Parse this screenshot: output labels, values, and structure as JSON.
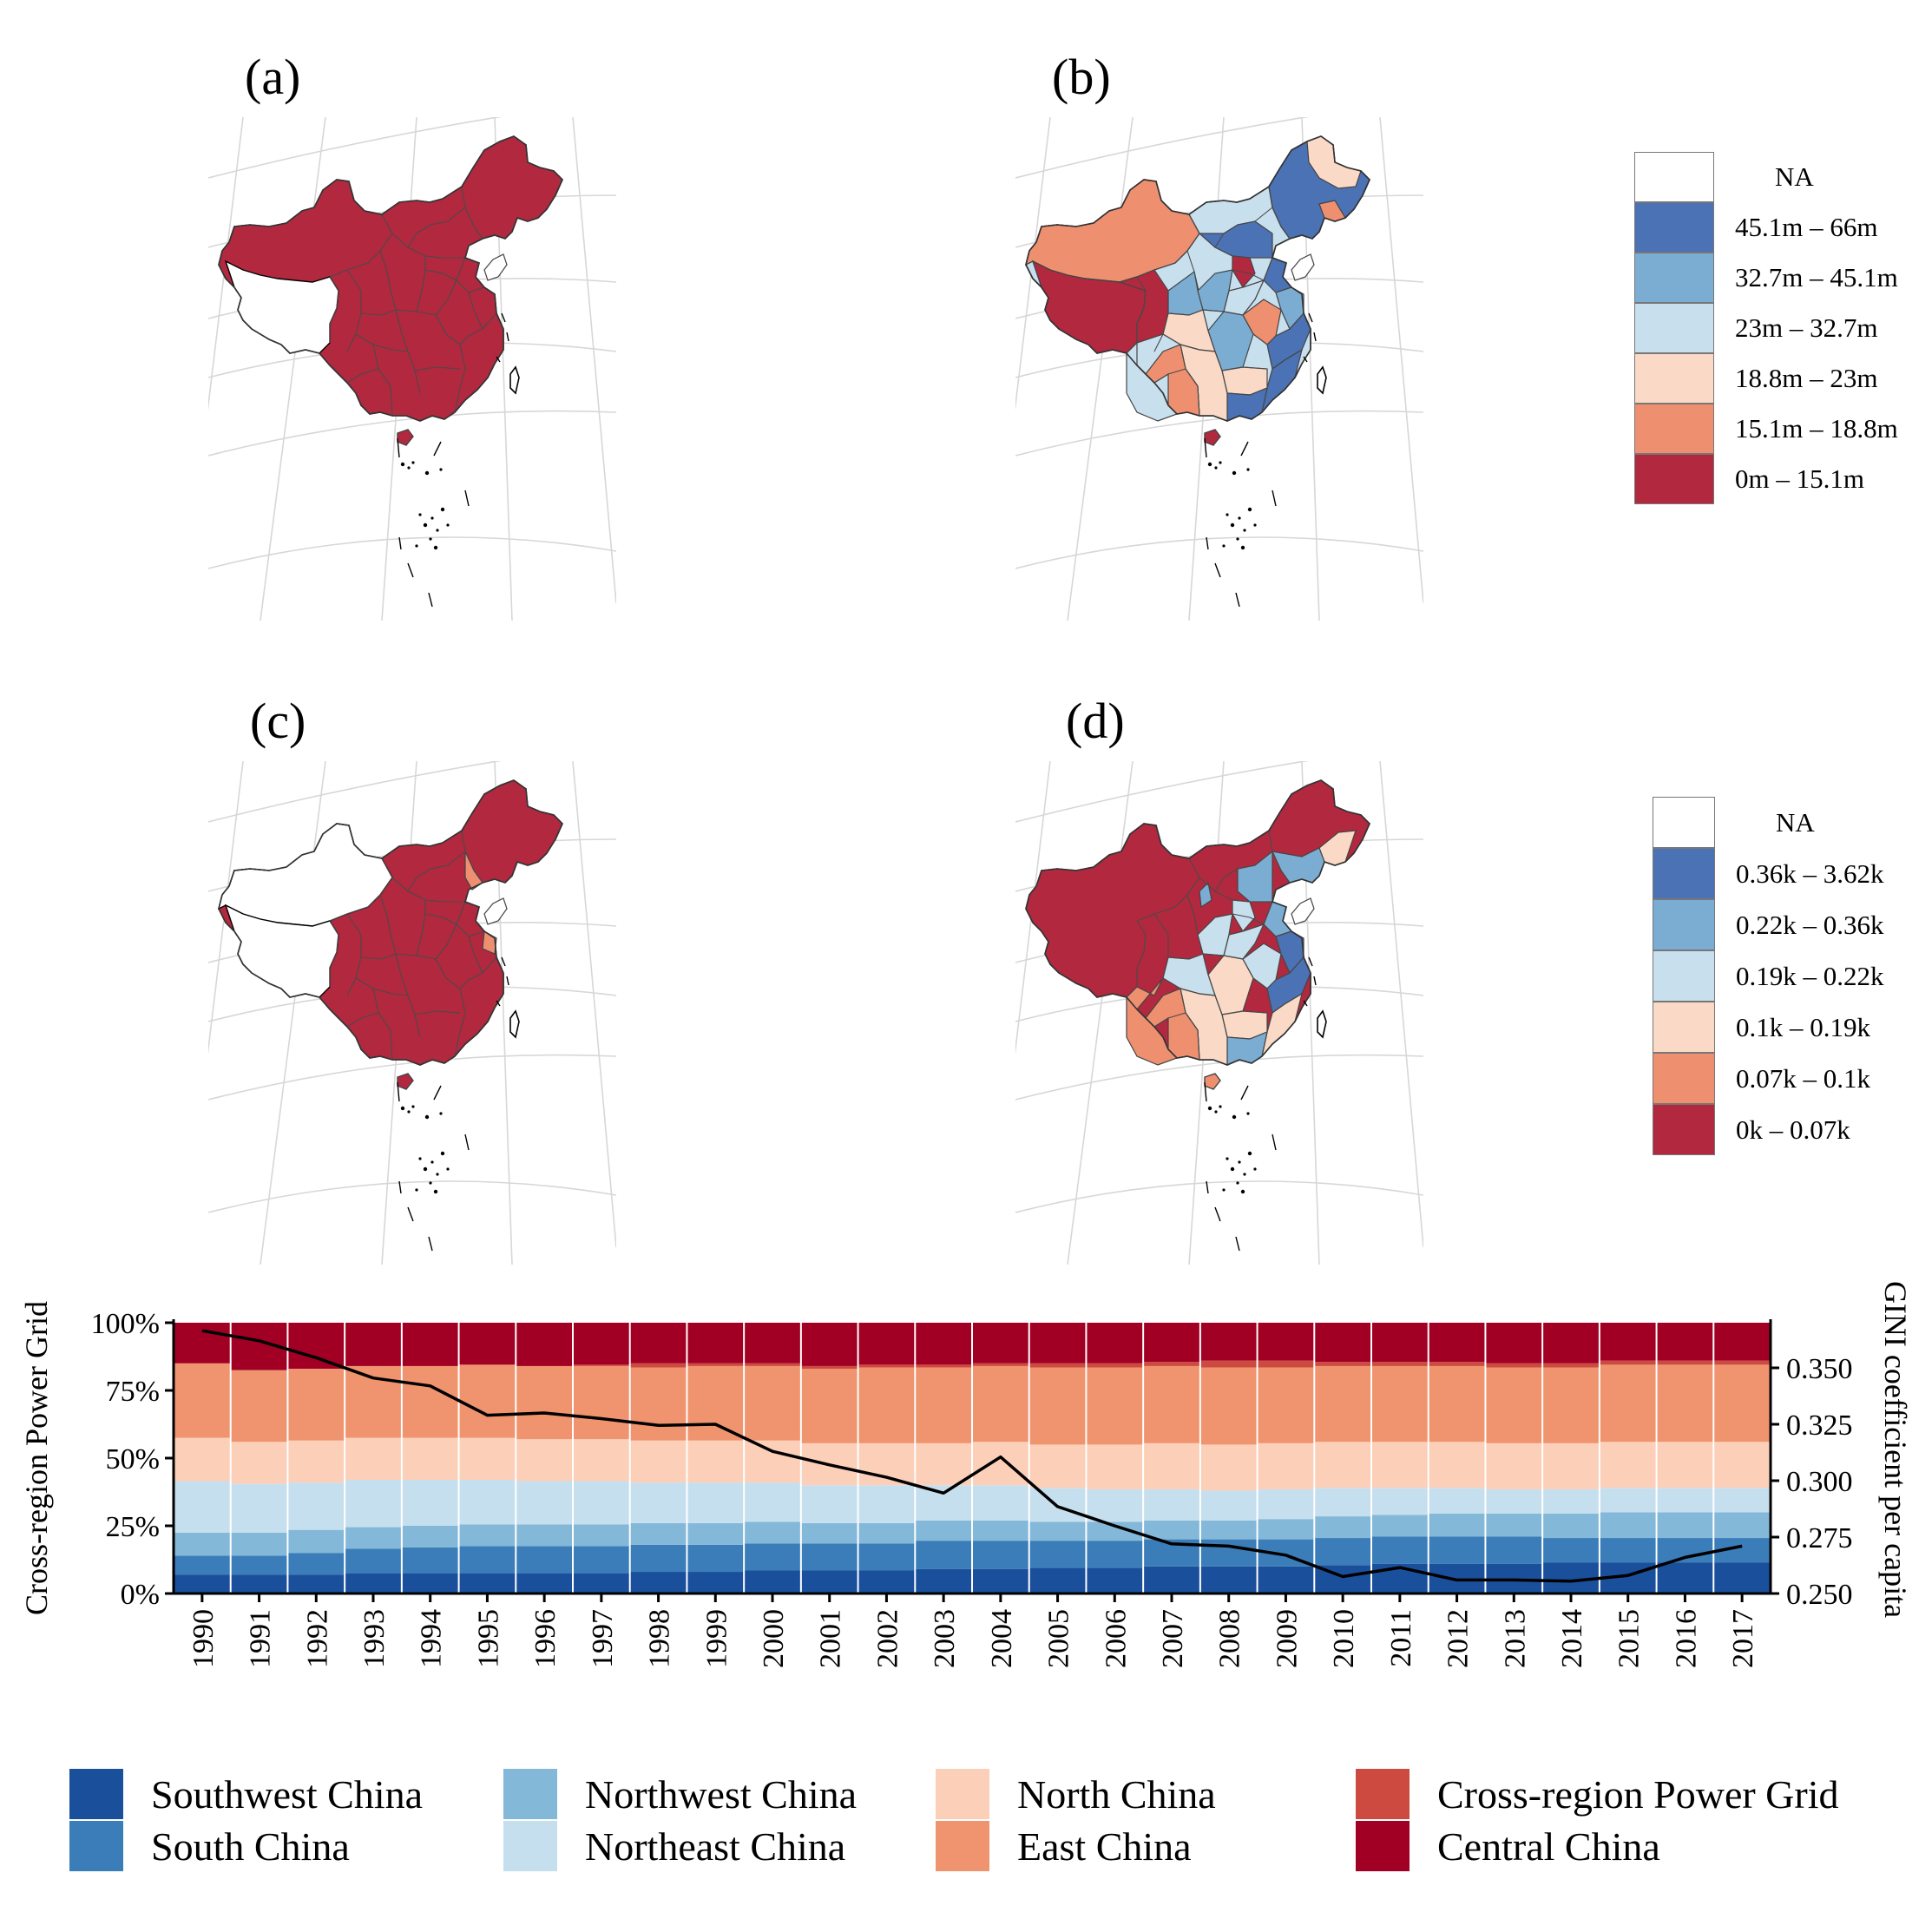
{
  "panels": {
    "a": {
      "label": "(a)"
    },
    "b": {
      "label": "(b)"
    },
    "c": {
      "label": "(c)"
    },
    "d": {
      "label": "(d)"
    }
  },
  "map_colors": {
    "c1": "#b2283f",
    "c2": "#ee9070",
    "c3": "#fad9c6",
    "c4": "#c8dfee",
    "c5": "#7badd3",
    "c6": "#4b72b4"
  },
  "legend_top": {
    "items": [
      {
        "label": "NA",
        "color": "#ffffff"
      },
      {
        "label": "45.1m – 66m",
        "color": "#4b72b4"
      },
      {
        "label": "32.7m – 45.1m",
        "color": "#7badd3"
      },
      {
        "label": "23m – 32.7m",
        "color": "#c8dfee"
      },
      {
        "label": "18.8m – 23m",
        "color": "#fad9c6"
      },
      {
        "label": "15.1m – 18.8m",
        "color": "#ee9070"
      },
      {
        "label": "0m – 15.1m",
        "color": "#b2283f"
      }
    ]
  },
  "legend_bottom_right": {
    "items": [
      {
        "label": "NA",
        "color": "#ffffff"
      },
      {
        "label": "0.36k – 3.62k",
        "color": "#4b72b4"
      },
      {
        "label": "0.22k – 0.36k",
        "color": "#7badd3"
      },
      {
        "label": "0.19k – 0.22k",
        "color": "#c8dfee"
      },
      {
        "label": "0.1k – 0.19k",
        "color": "#fad9c6"
      },
      {
        "label": "0.07k – 0.1k",
        "color": "#ee9070"
      },
      {
        "label": "0k – 0.07k",
        "color": "#b2283f"
      }
    ]
  },
  "chart_data": {
    "type": "bar",
    "stacked": true,
    "categories": [
      "1990",
      "1991",
      "1992",
      "1993",
      "1994",
      "1995",
      "1996",
      "1997",
      "1998",
      "1999",
      "2000",
      "2001",
      "2002",
      "2003",
      "2004",
      "2005",
      "2006",
      "2007",
      "2008",
      "2009",
      "2010",
      "2011",
      "2012",
      "2013",
      "2014",
      "2015",
      "2016",
      "2017"
    ],
    "ylabel": "Cross-region Power Grid",
    "y2label": "GINI coefficient per capita",
    "ylim": [
      0,
      1
    ],
    "yticks": [
      "0%",
      "25%",
      "50%",
      "75%",
      "100%"
    ],
    "y2lim": [
      0.25,
      0.37
    ],
    "y2ticks": [
      "0.250",
      "0.275",
      "0.300",
      "0.325",
      "0.350"
    ],
    "series": [
      {
        "name": "Southwest China",
        "color": "#1a4f9c",
        "values": [
          0.07,
          0.07,
          0.07,
          0.075,
          0.075,
          0.075,
          0.075,
          0.075,
          0.08,
          0.08,
          0.085,
          0.085,
          0.085,
          0.09,
          0.09,
          0.095,
          0.095,
          0.1,
          0.1,
          0.1,
          0.105,
          0.11,
          0.11,
          0.11,
          0.115,
          0.115,
          0.115,
          0.115
        ]
      },
      {
        "name": "South China",
        "color": "#3a7db8",
        "values": [
          0.07,
          0.07,
          0.08,
          0.09,
          0.095,
          0.1,
          0.1,
          0.1,
          0.1,
          0.1,
          0.1,
          0.1,
          0.1,
          0.105,
          0.105,
          0.1,
          0.1,
          0.1,
          0.1,
          0.1,
          0.1,
          0.1,
          0.1,
          0.1,
          0.09,
          0.09,
          0.09,
          0.09
        ]
      },
      {
        "name": "Northwest China",
        "color": "#84b8d8",
        "values": [
          0.085,
          0.085,
          0.085,
          0.08,
          0.08,
          0.08,
          0.08,
          0.08,
          0.08,
          0.08,
          0.08,
          0.075,
          0.075,
          0.075,
          0.075,
          0.07,
          0.07,
          0.07,
          0.07,
          0.075,
          0.08,
          0.08,
          0.085,
          0.085,
          0.09,
          0.095,
          0.095,
          0.095
        ]
      },
      {
        "name": "Northeast China",
        "color": "#c6dfee",
        "values": [
          0.19,
          0.18,
          0.175,
          0.175,
          0.17,
          0.165,
          0.16,
          0.16,
          0.15,
          0.15,
          0.145,
          0.14,
          0.14,
          0.13,
          0.13,
          0.125,
          0.12,
          0.115,
          0.11,
          0.11,
          0.105,
          0.1,
          0.095,
          0.09,
          0.09,
          0.09,
          0.09,
          0.09
        ]
      },
      {
        "name": "North China",
        "color": "#fbcfb8",
        "values": [
          0.16,
          0.155,
          0.155,
          0.155,
          0.155,
          0.155,
          0.155,
          0.155,
          0.155,
          0.155,
          0.155,
          0.155,
          0.155,
          0.155,
          0.16,
          0.16,
          0.165,
          0.17,
          0.17,
          0.17,
          0.17,
          0.17,
          0.17,
          0.17,
          0.17,
          0.17,
          0.17,
          0.17
        ]
      },
      {
        "name": "East China",
        "color": "#ef946f",
        "values": [
          0.275,
          0.265,
          0.265,
          0.265,
          0.265,
          0.27,
          0.27,
          0.27,
          0.27,
          0.275,
          0.275,
          0.275,
          0.28,
          0.28,
          0.28,
          0.285,
          0.285,
          0.285,
          0.285,
          0.28,
          0.28,
          0.28,
          0.28,
          0.28,
          0.28,
          0.285,
          0.285,
          0.285
        ]
      },
      {
        "name": "Cross-region Power Grid",
        "color": "#cc4a3f",
        "values": [
          0,
          0,
          0,
          0,
          0,
          0,
          0,
          0.005,
          0.015,
          0.01,
          0.01,
          0.01,
          0.01,
          0.01,
          0.01,
          0.015,
          0.015,
          0.015,
          0.025,
          0.025,
          0.015,
          0.015,
          0.015,
          0.015,
          0.015,
          0.015,
          0.015,
          0.015
        ]
      },
      {
        "name": "Central China",
        "color": "#a10024",
        "values": [
          0.15,
          0.175,
          0.17,
          0.16,
          0.16,
          0.155,
          0.16,
          0.155,
          0.15,
          0.15,
          0.15,
          0.16,
          0.155,
          0.155,
          0.15,
          0.15,
          0.15,
          0.145,
          0.14,
          0.14,
          0.145,
          0.145,
          0.145,
          0.15,
          0.15,
          0.14,
          0.14,
          0.14
        ]
      }
    ],
    "line": {
      "name": "GINI coefficient per capita",
      "color": "#000000",
      "values": [
        0.3665,
        0.362,
        0.3545,
        0.3455,
        0.342,
        0.329,
        0.33,
        0.3275,
        0.3245,
        0.325,
        0.313,
        0.307,
        0.3015,
        0.2945,
        0.3105,
        0.2885,
        0.28,
        0.272,
        0.271,
        0.267,
        0.2575,
        0.2615,
        0.256,
        0.256,
        0.2555,
        0.258,
        0.266,
        0.271
      ]
    }
  }
}
